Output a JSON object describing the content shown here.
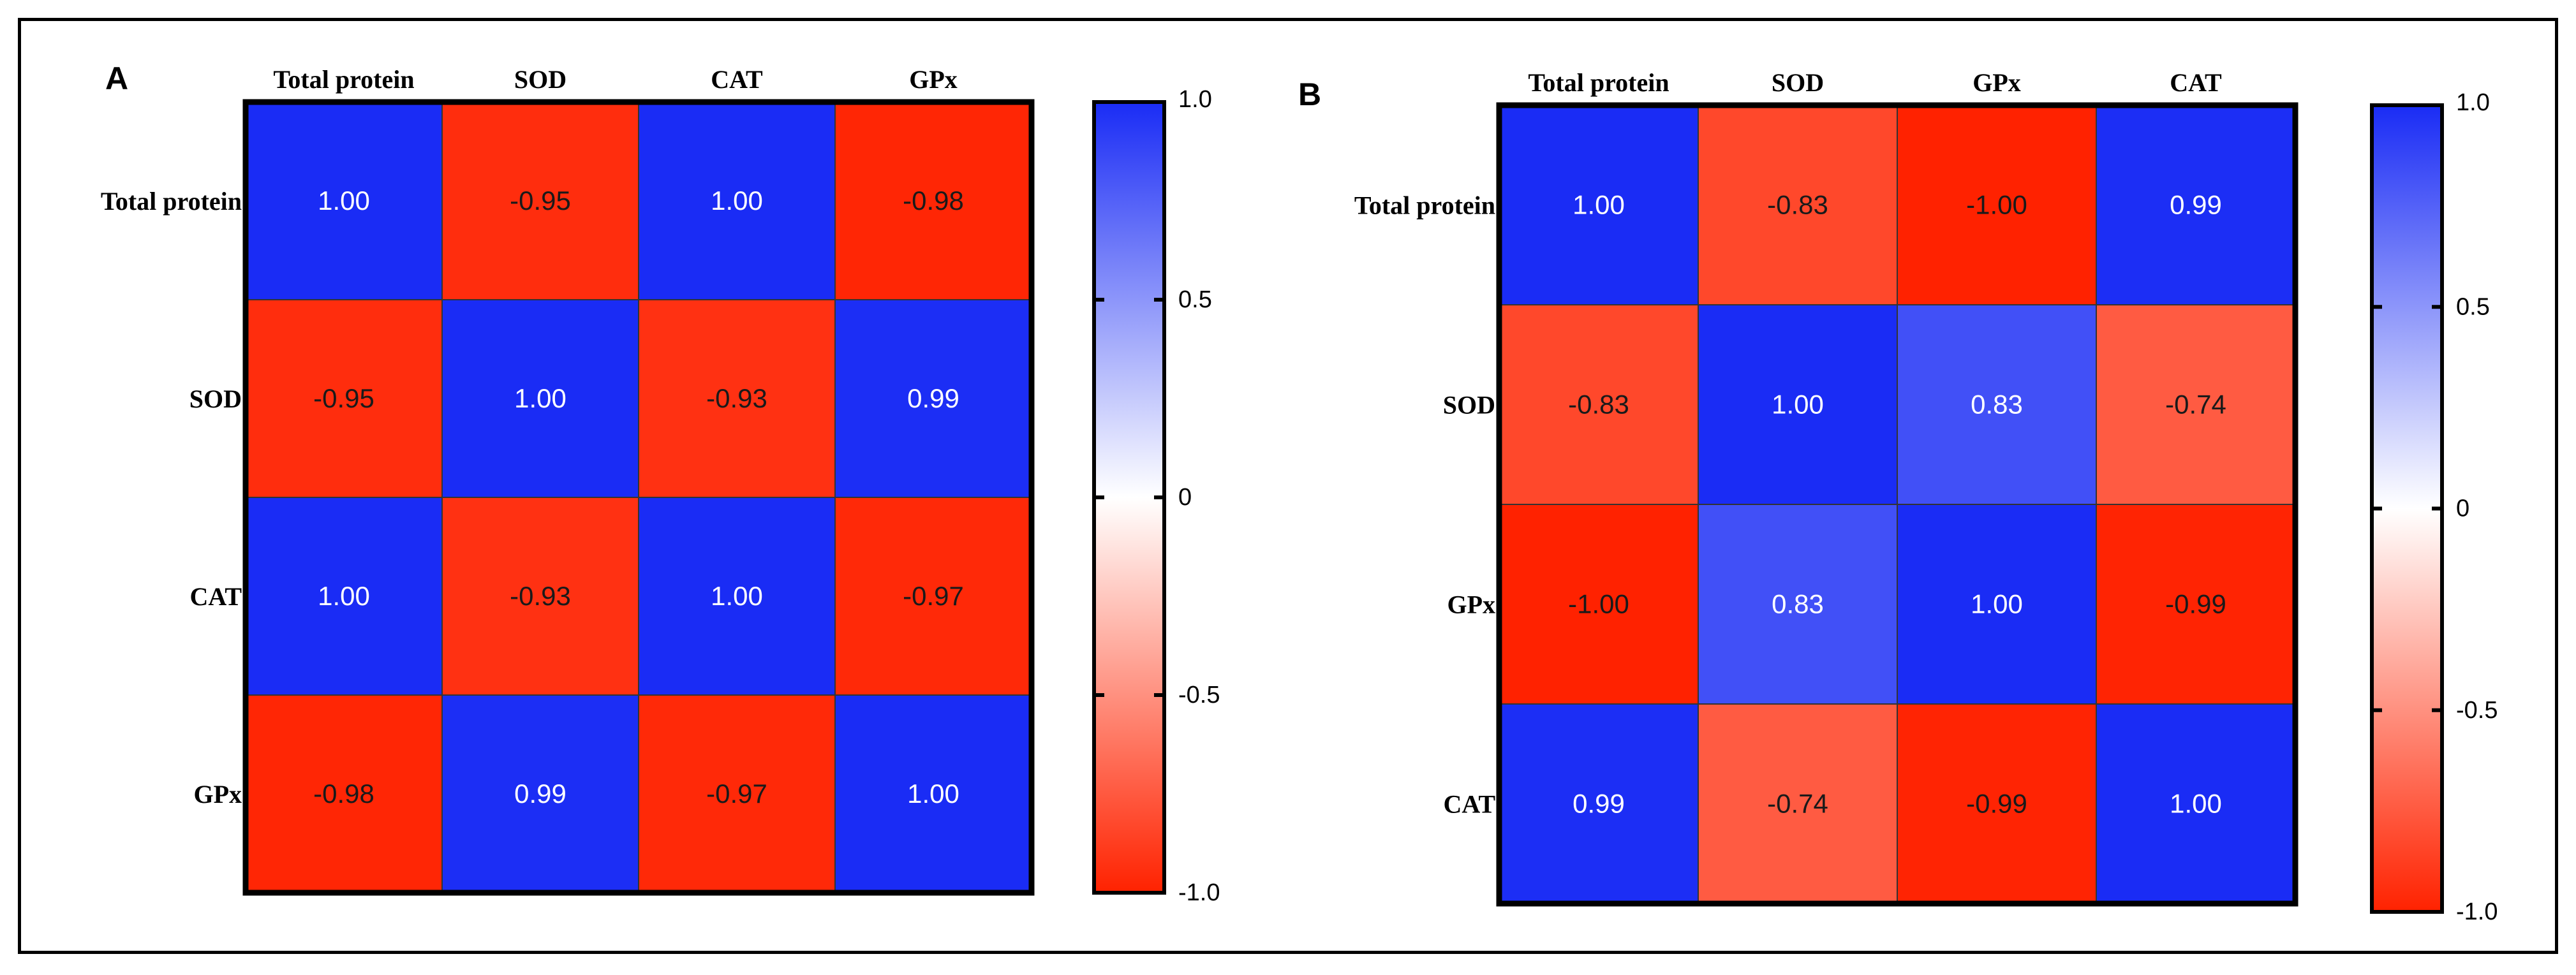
{
  "chart_data": [
    {
      "type": "heatmap",
      "panel": "A",
      "x_labels": [
        "Total protein",
        "SOD",
        "CAT",
        "GPx"
      ],
      "y_labels": [
        "Total protein",
        "SOD",
        "CAT",
        "GPx"
      ],
      "values": [
        [
          1.0,
          -0.95,
          1.0,
          -0.98
        ],
        [
          -0.95,
          1.0,
          -0.93,
          0.99
        ],
        [
          1.0,
          -0.93,
          1.0,
          -0.97
        ],
        [
          -0.98,
          0.99,
          -0.97,
          1.0
        ]
      ],
      "colorbar": {
        "range": [
          -1.0,
          1.0
        ],
        "ticks": [
          "1.0",
          "0.5",
          "0",
          "-0.5",
          "-1.0"
        ],
        "tick_values": [
          1.0,
          0.5,
          0,
          -0.5,
          -1.0
        ]
      }
    },
    {
      "type": "heatmap",
      "panel": "B",
      "x_labels": [
        "Total protein",
        "SOD",
        "GPx",
        "CAT"
      ],
      "y_labels": [
        "Total protein",
        "SOD",
        "GPx",
        "CAT"
      ],
      "values": [
        [
          1.0,
          -0.83,
          -1.0,
          0.99
        ],
        [
          -0.83,
          1.0,
          0.83,
          -0.74
        ],
        [
          -1.0,
          0.83,
          1.0,
          -0.99
        ],
        [
          0.99,
          -0.74,
          -0.99,
          1.0
        ]
      ],
      "colorbar": {
        "range": [
          -1.0,
          1.0
        ],
        "ticks": [
          "1.0",
          "0.5",
          "0",
          "-0.5",
          "-1.0"
        ],
        "tick_values": [
          1.0,
          0.5,
          0,
          -0.5,
          -1.0
        ]
      }
    }
  ],
  "colors": {
    "positive": "#1a2cf5",
    "neutral": "#ffffff",
    "negative": "#ff2200"
  }
}
